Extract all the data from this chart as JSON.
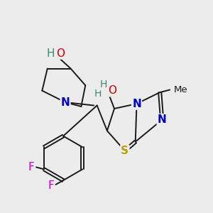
{
  "background_color": "#ececec",
  "fig_width": 3.0,
  "fig_height": 3.0,
  "dpi": 100,
  "bond_lw": 1.4,
  "bond_color": "#1a1a1a",
  "colors": {
    "N": "#0000cc",
    "O": "#cc0000",
    "S": "#b8a000",
    "F": "#cc00cc",
    "HO_pip": "#3a8b6e",
    "H": "#3a8b6e",
    "C": "#1a1a1a"
  }
}
